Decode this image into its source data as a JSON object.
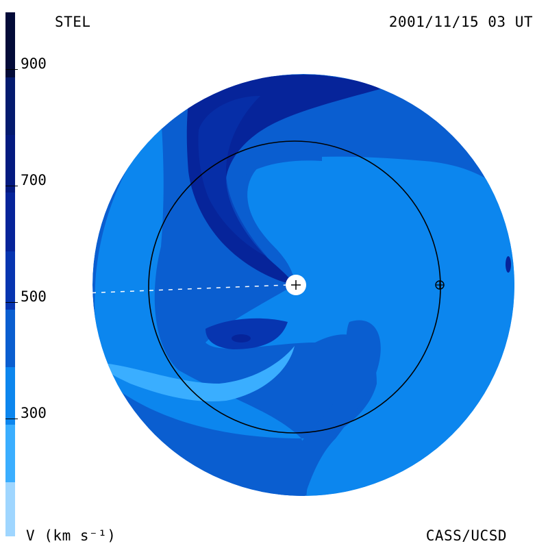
{
  "header": {
    "origin_label": "STEL",
    "timestamp": "2001/11/15 03 UT"
  },
  "footer": {
    "credit": "CASS/UCSD",
    "unit_label": "V (km s⁻¹)"
  },
  "colorbar": {
    "ticks": [
      "900",
      "700",
      "500",
      "300"
    ],
    "bands": [
      "#030b38",
      "#041a6e",
      "#06249a",
      "#0735b0",
      "#0a5ed0",
      "#0c86ee",
      "#3aaeff",
      "#9fd6ff"
    ]
  },
  "map": {
    "sun_marker": "sun-plus-icon",
    "earth_marker": "earth-circle-plus-icon"
  }
}
